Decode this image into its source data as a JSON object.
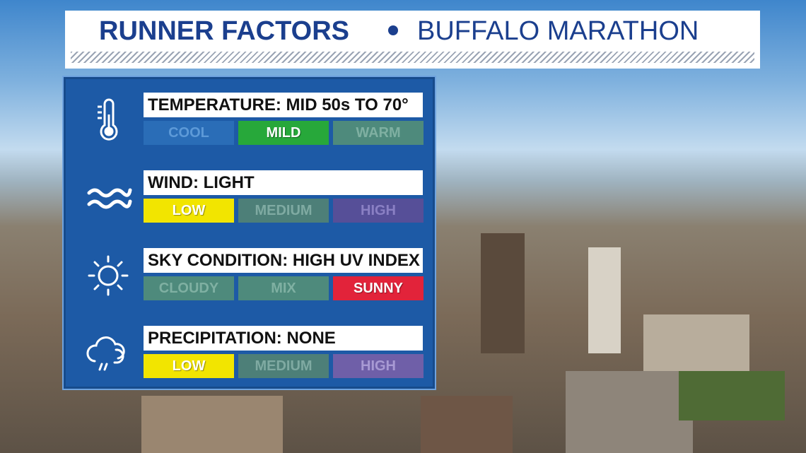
{
  "header": {
    "title_left": "RUNNER FACTORS",
    "title_right": "BUFFALO MARATHON"
  },
  "factors": [
    {
      "label": "TEMPERATURE: MID 50s TO 70°",
      "options": [
        "COOL",
        "MILD",
        "WARM"
      ],
      "selected": 1
    },
    {
      "label": "WIND: LIGHT",
      "options": [
        "LOW",
        "MEDIUM",
        "HIGH"
      ],
      "selected": 0
    },
    {
      "label": "SKY CONDITION: HIGH UV INDEX",
      "options": [
        "CLOUDY",
        "MIX",
        "SUNNY"
      ],
      "selected": 2
    },
    {
      "label": "PRECIPITATION: NONE",
      "options": [
        "LOW",
        "MEDIUM",
        "HIGH"
      ],
      "selected": 0
    }
  ]
}
